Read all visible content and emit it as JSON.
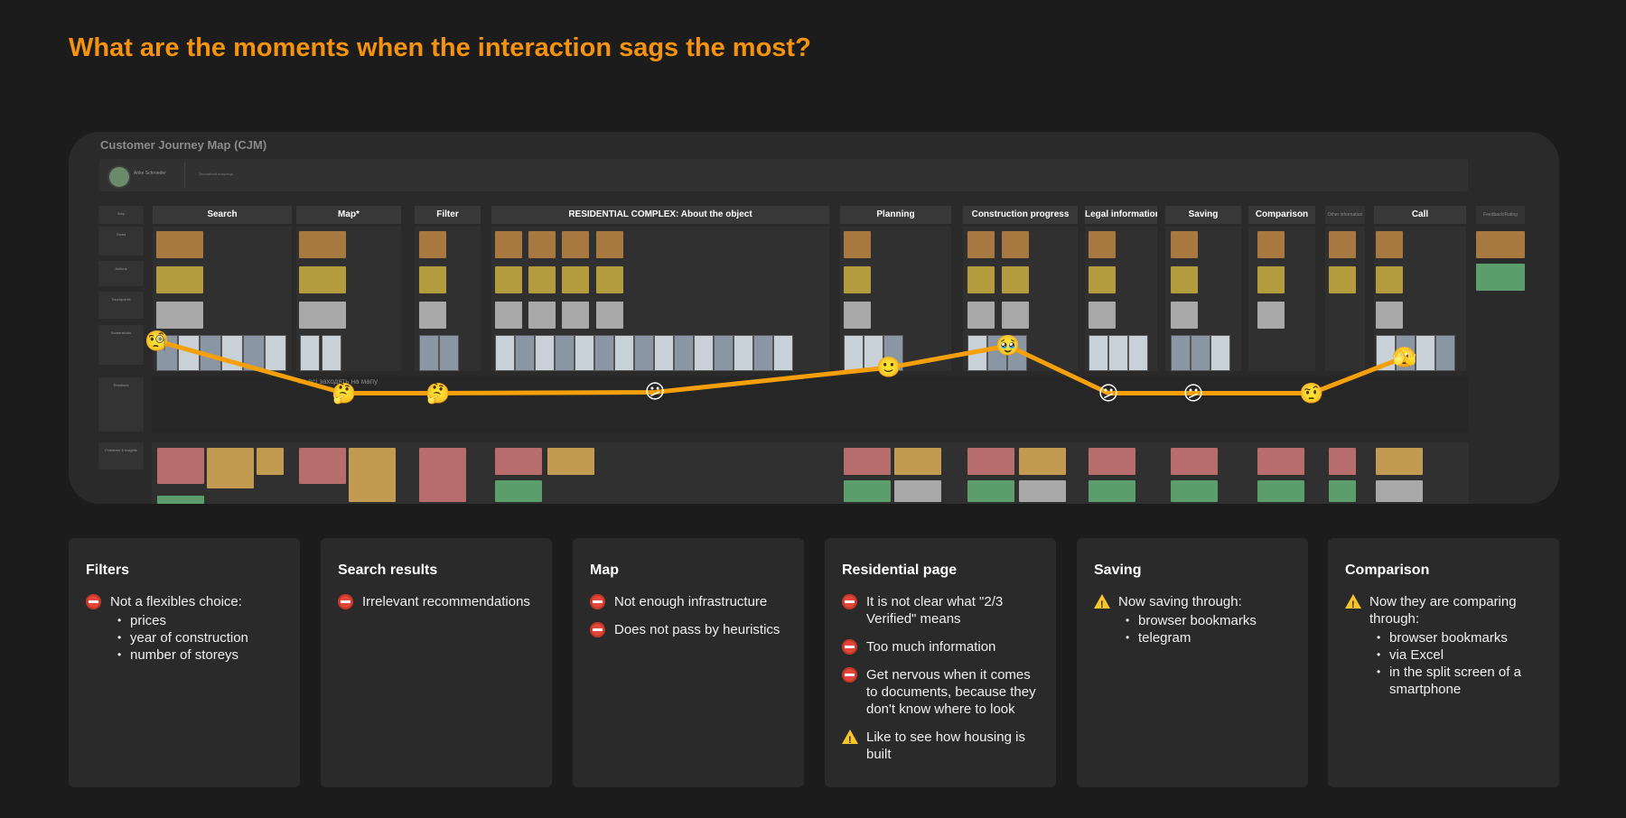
{
  "headline": "What are the moments when the interaction sags the most?",
  "cjm": {
    "title": "Customer Journey Map (CJM)",
    "persona_name": "Anke Schroeder",
    "persona_note": "Звичайний покупець",
    "map_note": "*не всі заходять на мапу",
    "row_labels": [
      "Step",
      "Goals",
      "Actions",
      "Touchpoints",
      "Screenshots",
      "Emotions",
      "Problems & Insights"
    ],
    "stages": [
      "Search",
      "Map*",
      "Filter",
      "RESIDENTIAL COMPLEX: About the object",
      "Planning",
      "Construction progress",
      "Legal information",
      "Saving",
      "Comparison",
      "Other information",
      "Call",
      "Feedback/Rating"
    ],
    "emotions": [
      {
        "stage": "Search",
        "emoji": "🧐",
        "level": 0.85
      },
      {
        "stage": "Map*",
        "emoji": "🤔",
        "level": 0.3
      },
      {
        "stage": "Filter",
        "emoji": "🤔",
        "level": 0.3
      },
      {
        "stage": "RESIDENTIAL COMPLEX: About the object",
        "emoji": "😕",
        "level": 0.31
      },
      {
        "stage": "Planning",
        "emoji": "🙂",
        "level": 0.57
      },
      {
        "stage": "Construction progress",
        "emoji": "🥹",
        "level": 0.8
      },
      {
        "stage": "Legal information",
        "emoji": "😕",
        "level": 0.3
      },
      {
        "stage": "Saving",
        "emoji": "😕",
        "level": 0.3
      },
      {
        "stage": "Comparison",
        "emoji": "🤨",
        "level": 0.3
      },
      {
        "stage": "Call",
        "emoji": "🫣",
        "level": 0.68
      }
    ],
    "line_color": "#f5a00a"
  },
  "cards": [
    {
      "title": "Filters",
      "items": [
        {
          "icon": "stop-icon",
          "text": "Not a flexibles choice:",
          "sub": [
            "prices",
            "year of construction",
            "number of storeys"
          ]
        }
      ]
    },
    {
      "title": "Search results",
      "items": [
        {
          "icon": "stop-icon",
          "text": "Irrelevant recommendations",
          "sub": []
        }
      ]
    },
    {
      "title": "Map",
      "items": [
        {
          "icon": "stop-icon",
          "text": "Not enough infrastructure",
          "sub": []
        },
        {
          "icon": "stop-icon",
          "text": "Does not pass by heuristics",
          "sub": []
        }
      ]
    },
    {
      "title": "Residential page",
      "items": [
        {
          "icon": "stop-icon",
          "text": "It is not clear what \"2/3 Verified\" means",
          "sub": []
        },
        {
          "icon": "stop-icon",
          "text": "Too much information",
          "sub": []
        },
        {
          "icon": "stop-icon",
          "text": "Get nervous when it comes to documents, because they don't know where to look",
          "sub": []
        },
        {
          "icon": "warning-icon",
          "text": "Like to see how housing is built",
          "sub": []
        }
      ]
    },
    {
      "title": "Saving",
      "items": [
        {
          "icon": "warning-icon",
          "text": "Now saving through:",
          "sub": [
            "browser bookmarks",
            "telegram"
          ]
        }
      ]
    },
    {
      "title": "Comparison",
      "items": [
        {
          "icon": "warning-icon",
          "text": "Now they are comparing through:",
          "sub": [
            "browser bookmarks",
            "via Excel",
            "in the split screen of a smartphone"
          ]
        }
      ]
    }
  ],
  "colors": {
    "accent": "#f5930f",
    "stop": "#e2473a",
    "warning": "#f7c52b"
  }
}
